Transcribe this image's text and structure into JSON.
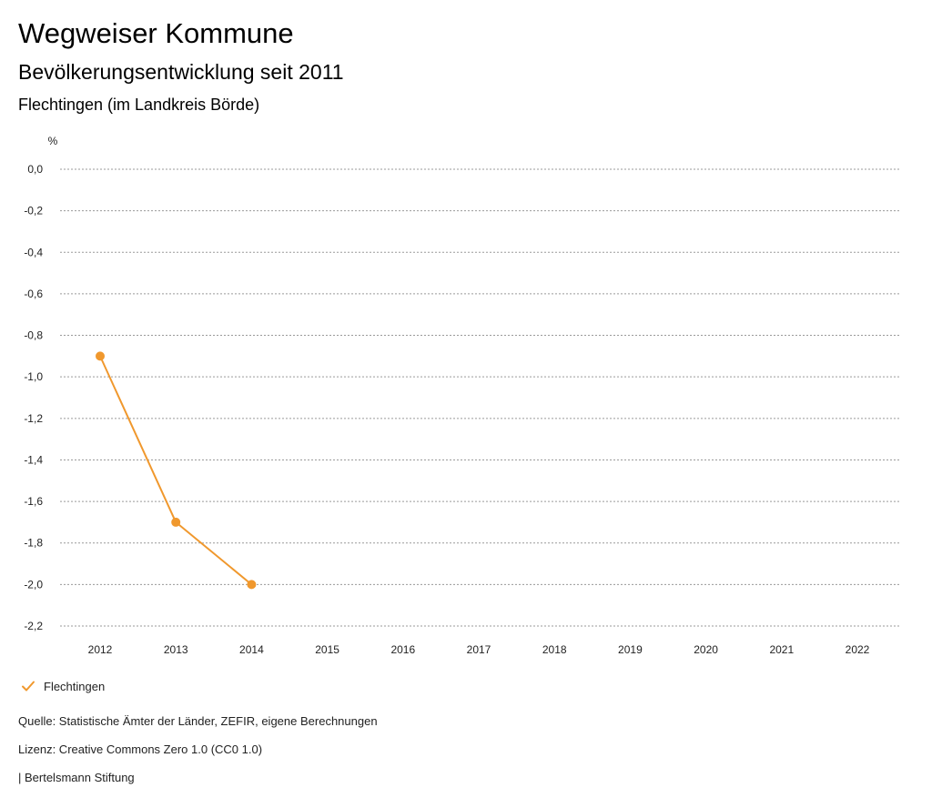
{
  "header": {
    "title": "Wegweiser Kommune",
    "subtitle": "Bevölkerungsentwicklung seit 2011",
    "region": "Flechtingen (im Landkreis Börde)"
  },
  "chart_data": {
    "type": "line",
    "title": "Bevölkerungsentwicklung seit 2011",
    "ylabel": "%",
    "xlabel": "",
    "categories": [
      "2012",
      "2013",
      "2014",
      "2015",
      "2016",
      "2017",
      "2018",
      "2019",
      "2020",
      "2021",
      "2022"
    ],
    "ylim": [
      -2.2,
      0.0
    ],
    "yticks": [
      0.0,
      -0.2,
      -0.4,
      -0.6,
      -0.8,
      -1.0,
      -1.2,
      -1.4,
      -1.6,
      -1.8,
      -2.0,
      -2.2
    ],
    "ytick_labels": [
      "0,0",
      "-0,2",
      "-0,4",
      "-0,6",
      "-0,8",
      "-1,0",
      "-1,2",
      "-1,4",
      "-1,6",
      "-1,8",
      "-2,0",
      "-2,2"
    ],
    "grid": true,
    "legend_position": "bottom-left",
    "series": [
      {
        "name": "Flechtingen",
        "color": "#f0982d",
        "values": [
          -0.9,
          -1.7,
          -2.0,
          null,
          null,
          null,
          null,
          null,
          null,
          null,
          null
        ]
      }
    ]
  },
  "legend": {
    "items": [
      {
        "label": "Flechtingen",
        "icon": "check-icon",
        "color": "#f0982d"
      }
    ]
  },
  "footer": {
    "source": "Quelle: Statistische Ämter der Länder, ZEFIR, eigene Berechnungen",
    "license": "Lizenz: Creative Commons Zero 1.0 (CC0 1.0)",
    "publisher": "| Bertelsmann Stiftung"
  }
}
